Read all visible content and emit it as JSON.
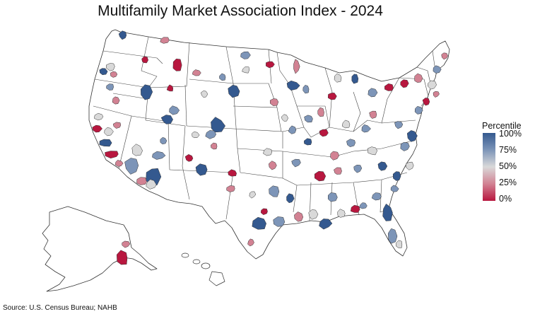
{
  "title": "Multifamily Market Association Index - 2024",
  "legend": {
    "title": "Percentile",
    "ticks": [
      "100%",
      "75%",
      "50%",
      "25%",
      "0%"
    ],
    "colors": {
      "high": "#34598f",
      "upper": "#7d95b8",
      "mid": "#d9d9d9",
      "lower": "#d28293",
      "low": "#b8173f"
    }
  },
  "source": "Source: U.S. Census Bureau; NAHB"
}
